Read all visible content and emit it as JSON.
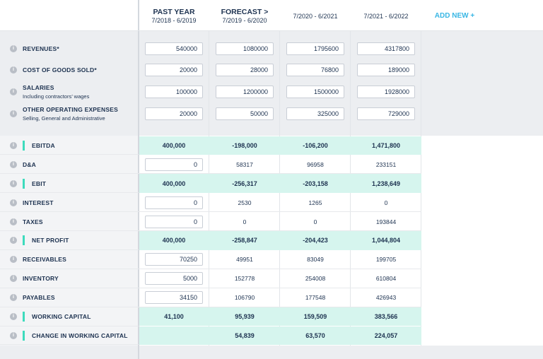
{
  "header": {
    "columns": [
      {
        "title": "PAST YEAR",
        "period": "7/2018 - 6/2019"
      },
      {
        "title": "FORECAST >",
        "period": "7/2019 - 6/2020"
      },
      {
        "title": null,
        "period": "7/2020 - 6/2021"
      },
      {
        "title": null,
        "period": "7/2021 - 6/2022"
      }
    ],
    "add_new": "ADD NEW +"
  },
  "inputs": [
    {
      "label": "REVENUES*",
      "values": [
        "540000",
        "1080000",
        "1795600",
        "4317800"
      ]
    },
    {
      "label": "COST OF GOODS SOLD*",
      "values": [
        "20000",
        "28000",
        "76800",
        "189000"
      ]
    },
    {
      "label": "SALARIES",
      "sublabel": "Including contractors’ wages",
      "values": [
        "100000",
        "1200000",
        "1500000",
        "1928000"
      ]
    },
    {
      "label": "OTHER OPERATING EXPENSES",
      "sublabel": "Selling, General and Administrative",
      "values": [
        "20000",
        "50000",
        "325000",
        "729000"
      ]
    }
  ],
  "rows": [
    {
      "label": "EBITDA",
      "highlight": true,
      "values": [
        "400,000",
        "-198,000",
        "-106,200",
        "1,471,800"
      ]
    },
    {
      "label": "D&A",
      "values": [
        "0",
        "58317",
        "96958",
        "233151"
      ]
    },
    {
      "label": "EBIT",
      "highlight": true,
      "values": [
        "400,000",
        "-256,317",
        "-203,158",
        "1,238,649"
      ]
    },
    {
      "label": "INTEREST",
      "values": [
        "0",
        "2530",
        "1265",
        "0"
      ]
    },
    {
      "label": "TAXES",
      "values": [
        "0",
        "0",
        "0",
        "193844"
      ]
    },
    {
      "label": "NET PROFIT",
      "highlight": true,
      "values": [
        "400,000",
        "-258,847",
        "-204,423",
        "1,044,804"
      ]
    },
    {
      "label": "RECEIVABLES",
      "values": [
        "70250",
        "49951",
        "83049",
        "199705"
      ]
    },
    {
      "label": "INVENTORY",
      "values": [
        "5000",
        "152778",
        "254008",
        "610804"
      ]
    },
    {
      "label": "PAYABLES",
      "values": [
        "34150",
        "106790",
        "177548",
        "426943"
      ]
    },
    {
      "label": "WORKING CAPITAL",
      "highlight": true,
      "values": [
        "41,100",
        "95,939",
        "159,509",
        "383,566"
      ]
    },
    {
      "label": "CHANGE IN WORKING CAPITAL",
      "highlight": true,
      "values": [
        null,
        "54,839",
        "63,570",
        "224,057"
      ]
    }
  ]
}
